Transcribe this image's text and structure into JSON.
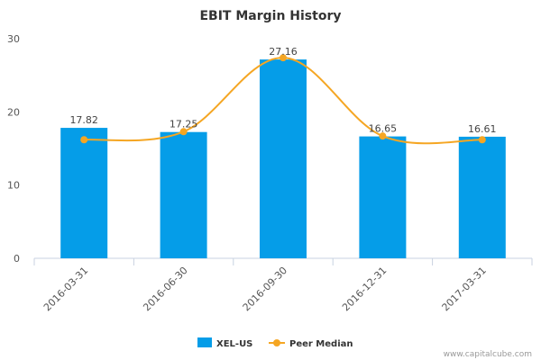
{
  "chart_data": {
    "type": "bar",
    "title": "EBIT Margin History",
    "categories": [
      "2016-03-31",
      "2016-06-30",
      "2016-09-30",
      "2016-12-31",
      "2017-03-31"
    ],
    "series": [
      {
        "name": "XEL-US",
        "type": "bar",
        "values": [
          17.82,
          17.25,
          27.16,
          16.65,
          16.61
        ],
        "data_labels": [
          "17.82",
          "17.25",
          "27.16",
          "16.65",
          "16.61"
        ],
        "color": "#059de8"
      },
      {
        "name": "Peer Median",
        "type": "line",
        "smooth": true,
        "values": [
          16.2,
          17.3,
          27.4,
          16.7,
          16.2
        ],
        "color": "#f5a623"
      }
    ],
    "ylim": [
      0,
      30
    ],
    "yticks": [
      "0",
      "10",
      "20",
      "30"
    ],
    "xlabel": "",
    "ylabel": "",
    "grid": false,
    "legend": "bottom-center"
  },
  "credit": "www.capitalcube.com"
}
